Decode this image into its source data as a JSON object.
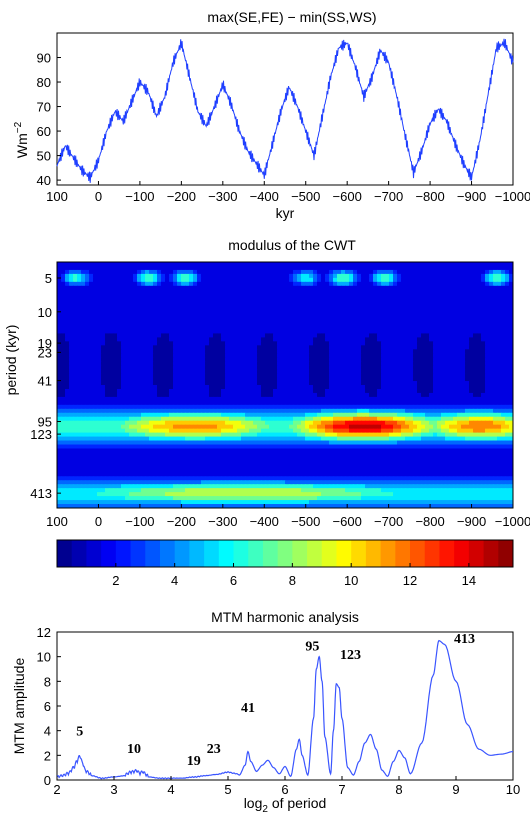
{
  "chart_data": [
    {
      "type": "line",
      "title": "max(SE,FE) − min(SS,WS)",
      "xlabel": "kyr",
      "ylabel": "Wm",
      "ylabel_sup": "−2",
      "xlim": [
        100,
        -1000
      ],
      "ylim": [
        38,
        100
      ],
      "xticks": [
        100,
        0,
        -100,
        -200,
        -300,
        -400,
        -500,
        -600,
        -700,
        -800,
        -900,
        -1000
      ],
      "xtick_labels": [
        "100",
        "0",
        "−100",
        "−200",
        "−300",
        "−400",
        "−500",
        "−600",
        "−700",
        "−800",
        "−900",
        "−1000"
      ],
      "yticks": [
        40,
        50,
        60,
        70,
        80,
        90
      ],
      "ytick_labels": [
        "40",
        "50",
        "60",
        "70",
        "80",
        "90"
      ],
      "color": "#1f3fff",
      "x": [
        100,
        80,
        60,
        40,
        20,
        0,
        -20,
        -40,
        -60,
        -80,
        -100,
        -120,
        -140,
        -160,
        -180,
        -200,
        -220,
        -240,
        -260,
        -280,
        -300,
        -320,
        -340,
        -360,
        -380,
        -400,
        -420,
        -440,
        -460,
        -480,
        -500,
        -520,
        -540,
        -560,
        -580,
        -600,
        -620,
        -640,
        -660,
        -680,
        -700,
        -720,
        -740,
        -760,
        -780,
        -800,
        -820,
        -840,
        -860,
        -880,
        -900,
        -920,
        -940,
        -960,
        -980,
        -1000
      ],
      "y": [
        46,
        54,
        49,
        44,
        41,
        48,
        60,
        68,
        64,
        72,
        80,
        76,
        66,
        74,
        88,
        96,
        82,
        68,
        62,
        70,
        79,
        71,
        60,
        52,
        47,
        42,
        55,
        68,
        78,
        70,
        60,
        50,
        66,
        82,
        94,
        96,
        86,
        74,
        82,
        93,
        88,
        74,
        58,
        43,
        52,
        63,
        69,
        64,
        55,
        47,
        41,
        56,
        75,
        94,
        96,
        88
      ]
    },
    {
      "type": "heatmap",
      "title": "modulus of the CWT",
      "ylabel": "period (kyr)",
      "xlim": [
        100,
        -1000
      ],
      "xticks": [
        100,
        0,
        -100,
        -200,
        -300,
        -400,
        -500,
        -600,
        -700,
        -800,
        -900,
        -1000
      ],
      "xtick_labels": [
        "100",
        "0",
        "−100",
        "−200",
        "−300",
        "−400",
        "−500",
        "−600",
        "−700",
        "−800",
        "−900",
        "−1000"
      ],
      "yticks": [
        5,
        10,
        19,
        23,
        41,
        95,
        123,
        413
      ],
      "ytick_labels": [
        "5",
        "10",
        "19",
        "23",
        "41",
        "95",
        "123",
        "413"
      ],
      "colorbar_ticks": [
        2,
        4,
        6,
        8,
        10,
        12,
        14
      ],
      "colorbar_labels": [
        "2",
        "4",
        "6",
        "8",
        "10",
        "12",
        "14"
      ],
      "colorbar_range": [
        0,
        15.5
      ],
      "features": [
        {
          "period": 5,
          "x": 55,
          "value": 6.5,
          "spread_kyr": 25
        },
        {
          "period": 5,
          "x": -120,
          "value": 7.0,
          "spread_kyr": 25
        },
        {
          "period": 5,
          "x": -210,
          "value": 6.8,
          "spread_kyr": 25
        },
        {
          "period": 5,
          "x": -500,
          "value": 6.0,
          "spread_kyr": 25
        },
        {
          "period": 5,
          "x": -590,
          "value": 7.2,
          "spread_kyr": 25
        },
        {
          "period": 5,
          "x": -690,
          "value": 6.8,
          "spread_kyr": 25
        },
        {
          "period": 5,
          "x": -960,
          "value": 7.2,
          "spread_kyr": 25
        },
        {
          "period": 105,
          "x": -230,
          "value": 11.5,
          "spread_kyr": 180
        },
        {
          "period": 105,
          "x": -640,
          "value": 14.5,
          "spread_kyr": 150
        },
        {
          "period": 105,
          "x": -920,
          "value": 12.0,
          "spread_kyr": 120
        },
        {
          "period": 413,
          "x": -350,
          "value": 9.0,
          "spread_kyr": 400
        }
      ]
    },
    {
      "type": "line",
      "title": "MTM harmonic analysis",
      "xlabel": "log",
      "xlabel_sub": "2",
      "xlabel_rest": " of period",
      "ylabel": "MTM amplitude",
      "xlim": [
        2,
        10
      ],
      "ylim": [
        0,
        12
      ],
      "xticks": [
        2,
        3,
        4,
        5,
        6,
        7,
        8,
        9,
        10
      ],
      "xtick_labels": [
        "2",
        "3",
        "4",
        "5",
        "6",
        "7",
        "8",
        "9",
        "10"
      ],
      "yticks": [
        0,
        2,
        4,
        6,
        8,
        10,
        12
      ],
      "ytick_labels": [
        "0",
        "2",
        "4",
        "6",
        "8",
        "10",
        "12"
      ],
      "color": "#3a55ff",
      "x": [
        2.0,
        2.1,
        2.2,
        2.3,
        2.35,
        2.4,
        2.45,
        2.5,
        2.6,
        2.8,
        3.0,
        3.2,
        3.3,
        3.4,
        3.45,
        3.5,
        3.6,
        3.8,
        4.0,
        4.2,
        4.4,
        4.6,
        4.8,
        5.0,
        5.1,
        5.2,
        5.3,
        5.35,
        5.4,
        5.5,
        5.6,
        5.7,
        5.8,
        5.9,
        6.0,
        6.1,
        6.2,
        6.25,
        6.3,
        6.4,
        6.5,
        6.55,
        6.6,
        6.65,
        6.7,
        6.8,
        6.85,
        6.9,
        6.95,
        7.0,
        7.1,
        7.2,
        7.3,
        7.4,
        7.5,
        7.6,
        7.7,
        7.8,
        7.9,
        8.0,
        8.1,
        8.2,
        8.4,
        8.6,
        8.7,
        8.8,
        9.0,
        9.2,
        9.4,
        9.6,
        9.8,
        10.0
      ],
      "y": [
        0.1,
        0.2,
        0.4,
        0.9,
        1.4,
        1.8,
        1.2,
        0.6,
        0.3,
        0.1,
        0.2,
        0.3,
        0.5,
        0.6,
        0.4,
        0.5,
        0.2,
        0.1,
        0.1,
        0.1,
        0.2,
        0.3,
        0.4,
        0.6,
        0.5,
        0.4,
        1.2,
        2.3,
        1.5,
        0.7,
        1.2,
        1.6,
        1.0,
        0.5,
        1.1,
        0.3,
        2.5,
        3.3,
        2.0,
        0.4,
        5.0,
        9.0,
        10.0,
        8.0,
        3.5,
        0.5,
        4.0,
        7.8,
        7.5,
        5.0,
        1.0,
        0.4,
        1.5,
        3.0,
        3.7,
        2.5,
        0.8,
        0.3,
        1.5,
        2.4,
        1.8,
        0.5,
        3.0,
        8.5,
        11.3,
        11.0,
        8.0,
        4.5,
        2.5,
        2.0,
        2.1,
        2.3
      ],
      "annotations": [
        {
          "text": "5",
          "x": 2.4,
          "y": 3.6
        },
        {
          "text": "10",
          "x": 3.35,
          "y": 2.2
        },
        {
          "text": "19",
          "x": 4.4,
          "y": 1.2
        },
        {
          "text": "23",
          "x": 4.75,
          "y": 2.2
        },
        {
          "text": "41",
          "x": 5.35,
          "y": 5.5
        },
        {
          "text": "95",
          "x": 6.48,
          "y": 10.5
        },
        {
          "text": "123",
          "x": 7.15,
          "y": 9.8
        },
        {
          "text": "413",
          "x": 9.15,
          "y": 11.1
        }
      ]
    }
  ]
}
